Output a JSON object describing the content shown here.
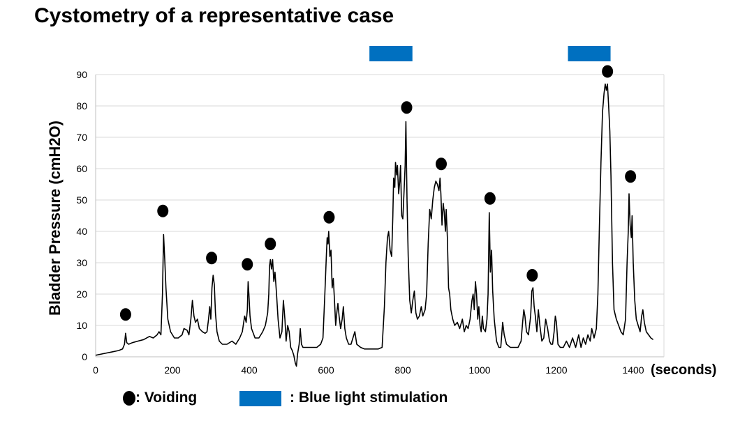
{
  "chart_data": {
    "type": "line",
    "title": "Cystometry of a representative case",
    "ylabel": "Bladder Pressure (cmH2O)",
    "xunit": "(seconds)",
    "xlim": [
      0,
      1480
    ],
    "ylim": [
      0,
      90
    ],
    "xticks": [
      0,
      200,
      400,
      600,
      800,
      1000,
      1200,
      1400
    ],
    "yticks": [
      0,
      10,
      20,
      30,
      40,
      50,
      60,
      70,
      80,
      90
    ],
    "grid": "horizontal",
    "colors": {
      "line": "#000000",
      "stimulation": "#0070c0",
      "grid": "#d9d9d9"
    },
    "pressure_trace": [
      [
        0,
        0.5
      ],
      [
        20,
        1
      ],
      [
        40,
        1.5
      ],
      [
        60,
        2
      ],
      [
        70,
        2.5
      ],
      [
        75,
        4
      ],
      [
        78,
        7.5
      ],
      [
        81,
        4.5
      ],
      [
        86,
        4
      ],
      [
        95,
        4.5
      ],
      [
        110,
        5
      ],
      [
        125,
        5.5
      ],
      [
        140,
        6.5
      ],
      [
        150,
        6
      ],
      [
        160,
        7
      ],
      [
        165,
        8
      ],
      [
        170,
        7
      ],
      [
        174,
        20
      ],
      [
        177,
        39
      ],
      [
        180,
        31
      ],
      [
        183,
        22
      ],
      [
        188,
        12
      ],
      [
        195,
        8
      ],
      [
        205,
        6
      ],
      [
        215,
        6
      ],
      [
        225,
        7
      ],
      [
        230,
        9
      ],
      [
        238,
        8.5
      ],
      [
        243,
        7
      ],
      [
        248,
        12
      ],
      [
        252,
        18
      ],
      [
        256,
        13
      ],
      [
        260,
        11
      ],
      [
        265,
        12
      ],
      [
        270,
        9
      ],
      [
        278,
        8
      ],
      [
        285,
        7.5
      ],
      [
        290,
        8
      ],
      [
        294,
        12
      ],
      [
        297,
        16
      ],
      [
        300,
        12
      ],
      [
        303,
        22
      ],
      [
        306,
        26
      ],
      [
        309,
        23
      ],
      [
        312,
        14
      ],
      [
        316,
        8
      ],
      [
        322,
        5
      ],
      [
        330,
        4
      ],
      [
        342,
        4
      ],
      [
        355,
        5
      ],
      [
        365,
        4
      ],
      [
        375,
        6
      ],
      [
        382,
        8
      ],
      [
        388,
        13
      ],
      [
        392,
        11
      ],
      [
        395,
        15
      ],
      [
        397,
        24
      ],
      [
        399,
        20
      ],
      [
        402,
        13
      ],
      [
        406,
        9
      ],
      [
        415,
        6
      ],
      [
        425,
        6
      ],
      [
        435,
        8
      ],
      [
        442,
        10
      ],
      [
        448,
        14
      ],
      [
        451,
        20
      ],
      [
        453,
        29
      ],
      [
        455,
        31
      ],
      [
        458,
        28
      ],
      [
        461,
        31
      ],
      [
        464,
        24
      ],
      [
        467,
        27
      ],
      [
        471,
        20
      ],
      [
        475,
        12
      ],
      [
        480,
        6
      ],
      [
        485,
        8
      ],
      [
        489,
        18
      ],
      [
        493,
        12
      ],
      [
        496,
        5
      ],
      [
        500,
        10
      ],
      [
        504,
        8
      ],
      [
        508,
        3
      ],
      [
        512,
        2
      ],
      [
        516,
        0.5
      ],
      [
        520,
        -2
      ],
      [
        523,
        -3
      ],
      [
        526,
        1
      ],
      [
        530,
        4
      ],
      [
        533,
        9
      ],
      [
        536,
        4
      ],
      [
        540,
        3
      ],
      [
        548,
        3
      ],
      [
        556,
        3
      ],
      [
        566,
        3
      ],
      [
        576,
        3
      ],
      [
        586,
        4
      ],
      [
        592,
        6
      ],
      [
        597,
        20
      ],
      [
        601,
        33
      ],
      [
        603,
        38
      ],
      [
        605,
        36
      ],
      [
        607,
        40
      ],
      [
        610,
        32
      ],
      [
        613,
        34
      ],
      [
        616,
        22
      ],
      [
        619,
        25
      ],
      [
        622,
        18
      ],
      [
        625,
        10
      ],
      [
        628,
        14
      ],
      [
        631,
        17
      ],
      [
        634,
        13
      ],
      [
        638,
        9
      ],
      [
        642,
        12
      ],
      [
        645,
        16
      ],
      [
        649,
        9
      ],
      [
        653,
        6
      ],
      [
        659,
        4
      ],
      [
        665,
        4
      ],
      [
        670,
        6
      ],
      [
        675,
        8
      ],
      [
        680,
        4
      ],
      [
        690,
        3
      ],
      [
        700,
        2.5
      ],
      [
        712,
        2.5
      ],
      [
        724,
        2.5
      ],
      [
        736,
        2.5
      ],
      [
        746,
        3
      ],
      [
        752,
        16
      ],
      [
        756,
        30
      ],
      [
        760,
        38
      ],
      [
        763,
        40
      ],
      [
        767,
        34
      ],
      [
        771,
        32
      ],
      [
        774,
        45
      ],
      [
        776,
        57
      ],
      [
        779,
        54
      ],
      [
        781,
        62
      ],
      [
        784,
        58
      ],
      [
        786,
        61
      ],
      [
        789,
        52
      ],
      [
        792,
        56
      ],
      [
        794,
        61
      ],
      [
        797,
        45
      ],
      [
        800,
        44
      ],
      [
        803,
        52
      ],
      [
        806,
        61
      ],
      [
        808,
        75
      ],
      [
        811,
        50
      ],
      [
        814,
        32
      ],
      [
        818,
        18
      ],
      [
        822,
        14
      ],
      [
        826,
        18
      ],
      [
        830,
        21
      ],
      [
        834,
        14
      ],
      [
        838,
        12
      ],
      [
        843,
        13
      ],
      [
        848,
        16
      ],
      [
        852,
        13
      ],
      [
        858,
        15
      ],
      [
        862,
        20
      ],
      [
        866,
        36
      ],
      [
        870,
        47
      ],
      [
        874,
        44
      ],
      [
        878,
        50
      ],
      [
        882,
        54
      ],
      [
        886,
        56
      ],
      [
        890,
        55
      ],
      [
        894,
        53
      ],
      [
        897,
        57
      ],
      [
        899,
        52
      ],
      [
        902,
        42
      ],
      [
        905,
        49
      ],
      [
        908,
        46
      ],
      [
        911,
        40
      ],
      [
        913,
        47
      ],
      [
        916,
        38
      ],
      [
        919,
        22
      ],
      [
        922,
        20
      ],
      [
        925,
        15
      ],
      [
        930,
        12
      ],
      [
        935,
        10
      ],
      [
        942,
        11
      ],
      [
        948,
        9
      ],
      [
        955,
        12
      ],
      [
        960,
        8
      ],
      [
        965,
        10
      ],
      [
        970,
        9
      ],
      [
        975,
        12
      ],
      [
        980,
        18
      ],
      [
        983,
        20
      ],
      [
        986,
        15
      ],
      [
        989,
        24
      ],
      [
        992,
        20
      ],
      [
        995,
        12
      ],
      [
        998,
        16
      ],
      [
        1001,
        10
      ],
      [
        1004,
        8
      ],
      [
        1007,
        13
      ],
      [
        1010,
        9
      ],
      [
        1015,
        8
      ],
      [
        1019,
        12
      ],
      [
        1022,
        20
      ],
      [
        1025,
        46
      ],
      [
        1028,
        27
      ],
      [
        1031,
        34
      ],
      [
        1034,
        21
      ],
      [
        1038,
        12
      ],
      [
        1044,
        5
      ],
      [
        1050,
        3
      ],
      [
        1055,
        3
      ],
      [
        1060,
        11
      ],
      [
        1064,
        7
      ],
      [
        1070,
        4
      ],
      [
        1080,
        3
      ],
      [
        1090,
        3
      ],
      [
        1100,
        3
      ],
      [
        1108,
        5
      ],
      [
        1112,
        11
      ],
      [
        1115,
        15
      ],
      [
        1118,
        13
      ],
      [
        1122,
        8
      ],
      [
        1127,
        7
      ],
      [
        1130,
        10
      ],
      [
        1133,
        13
      ],
      [
        1136,
        21
      ],
      [
        1139,
        22
      ],
      [
        1142,
        16
      ],
      [
        1145,
        13
      ],
      [
        1149,
        8
      ],
      [
        1153,
        15
      ],
      [
        1157,
        10
      ],
      [
        1162,
        5
      ],
      [
        1167,
        6
      ],
      [
        1172,
        12
      ],
      [
        1177,
        9
      ],
      [
        1182,
        5
      ],
      [
        1186,
        4
      ],
      [
        1190,
        4
      ],
      [
        1194,
        8
      ],
      [
        1197,
        13
      ],
      [
        1200,
        11
      ],
      [
        1204,
        4
      ],
      [
        1210,
        3
      ],
      [
        1218,
        3
      ],
      [
        1226,
        5
      ],
      [
        1234,
        3
      ],
      [
        1242,
        6
      ],
      [
        1250,
        3
      ],
      [
        1258,
        7
      ],
      [
        1264,
        3
      ],
      [
        1270,
        6
      ],
      [
        1276,
        4
      ],
      [
        1282,
        7
      ],
      [
        1288,
        5
      ],
      [
        1292,
        9
      ],
      [
        1298,
        6
      ],
      [
        1304,
        9
      ],
      [
        1308,
        20
      ],
      [
        1312,
        42
      ],
      [
        1316,
        62
      ],
      [
        1320,
        78
      ],
      [
        1324,
        84
      ],
      [
        1327,
        87
      ],
      [
        1330,
        85
      ],
      [
        1333,
        87
      ],
      [
        1336,
        80
      ],
      [
        1339,
        72
      ],
      [
        1342,
        58
      ],
      [
        1346,
        30
      ],
      [
        1350,
        15
      ],
      [
        1356,
        12
      ],
      [
        1362,
        10
      ],
      [
        1368,
        8
      ],
      [
        1374,
        7
      ],
      [
        1380,
        12
      ],
      [
        1384,
        30
      ],
      [
        1387,
        40
      ],
      [
        1389,
        52
      ],
      [
        1392,
        42
      ],
      [
        1395,
        38
      ],
      [
        1397,
        45
      ],
      [
        1400,
        30
      ],
      [
        1404,
        18
      ],
      [
        1408,
        12
      ],
      [
        1413,
        10
      ],
      [
        1418,
        8
      ],
      [
        1422,
        13
      ],
      [
        1425,
        15
      ],
      [
        1429,
        11
      ],
      [
        1434,
        8
      ],
      [
        1440,
        7
      ],
      [
        1446,
        6
      ],
      [
        1452,
        5.5
      ]
    ],
    "voiding_markers": [
      {
        "x": 78,
        "y": 13.5
      },
      {
        "x": 175,
        "y": 46.5
      },
      {
        "x": 302,
        "y": 31.5
      },
      {
        "x": 395,
        "y": 29.5
      },
      {
        "x": 455,
        "y": 36
      },
      {
        "x": 608,
        "y": 44.5
      },
      {
        "x": 810,
        "y": 79.5
      },
      {
        "x": 900,
        "y": 61.5
      },
      {
        "x": 1027,
        "y": 50.5
      },
      {
        "x": 1137,
        "y": 26
      },
      {
        "x": 1333,
        "y": 91
      },
      {
        "x": 1393,
        "y": 57.5
      }
    ],
    "stimulation_periods": [
      {
        "start": 713,
        "end": 825
      },
      {
        "start": 1230,
        "end": 1341
      }
    ]
  },
  "legend": {
    "voiding_label": ": Voiding",
    "stimulation_label": ": Blue light stimulation"
  }
}
